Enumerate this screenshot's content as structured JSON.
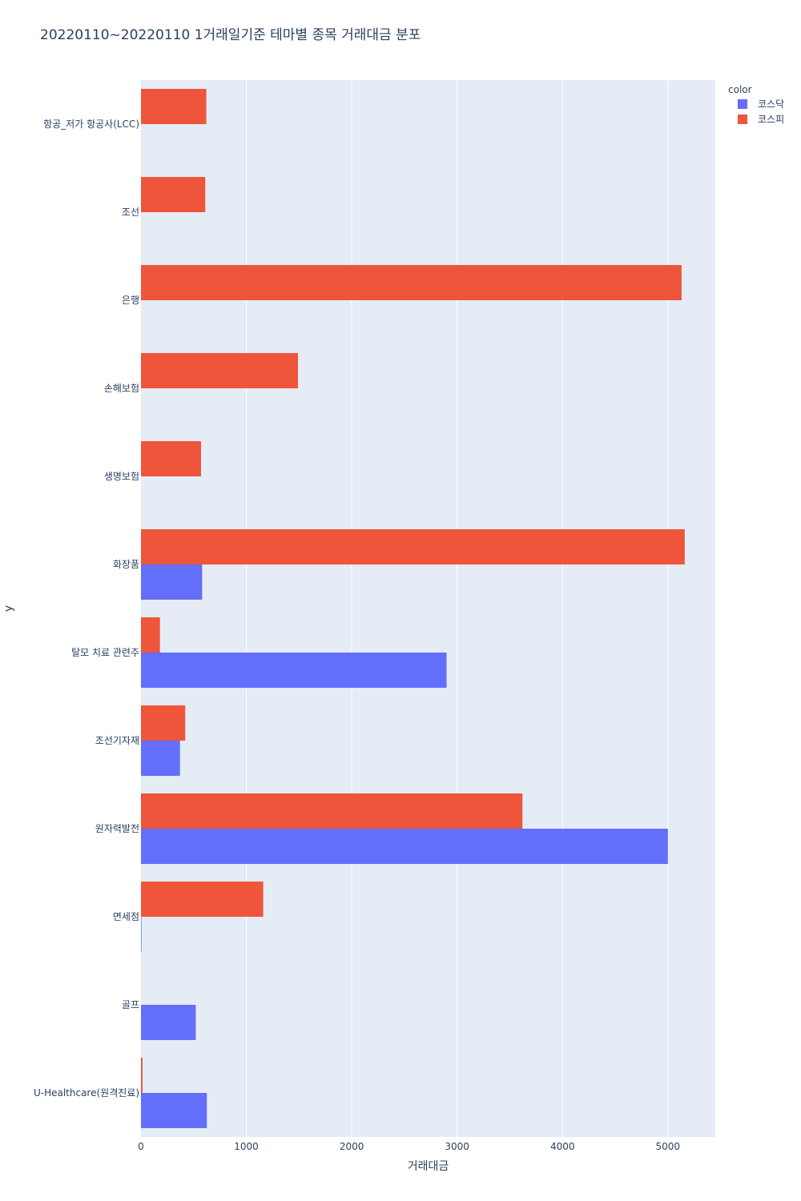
{
  "chart_data": {
    "type": "bar",
    "orientation": "horizontal",
    "barmode": "group",
    "title": "20220110~20220110 1거래일기준 테마별 종목 거래대금 분포",
    "xlabel": "거래대금",
    "ylabel": "y",
    "xlim": [
      0,
      5450
    ],
    "x_ticks": [
      0,
      1000,
      2000,
      3000,
      4000,
      5000
    ],
    "x_tick_labels": [
      "0",
      "1000",
      "2000",
      "3000",
      "4000",
      "5000"
    ],
    "grid": true,
    "categories": [
      "항공_저가 항공사(LCC)",
      "조선",
      "은행",
      "손해보험",
      "생명보험",
      "화장품",
      "탈모 치료 관련주",
      "조선기자재",
      "원자력발전",
      "면세점",
      "골프",
      "U-Healthcare(원격진료)"
    ],
    "series": [
      {
        "name": "코스닥",
        "color": "#636efa",
        "values": [
          0,
          0,
          0,
          0,
          0,
          580,
          2900,
          370,
          5000,
          5,
          520,
          625
        ]
      },
      {
        "name": "코스피",
        "color": "#ef553b",
        "values": [
          620,
          610,
          5130,
          1490,
          570,
          5160,
          180,
          420,
          3620,
          1160,
          0,
          15
        ]
      }
    ],
    "legend": {
      "title": "color",
      "position": "top-right"
    }
  }
}
